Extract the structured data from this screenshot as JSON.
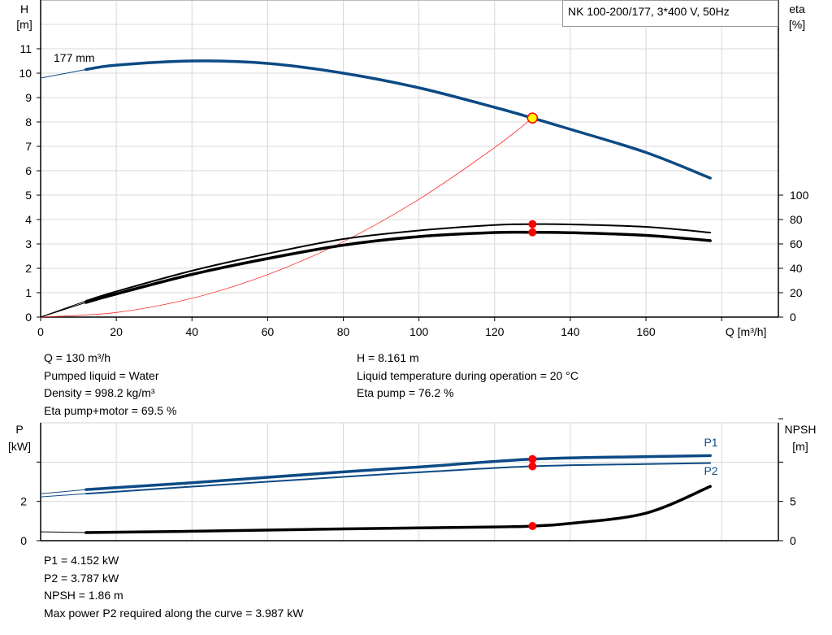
{
  "chart_data": [
    {
      "type": "line",
      "title": "NK 100-200/177, 3*400 V, 50Hz",
      "xlabel": "Q [m³/h]",
      "ylabel": "H\n[m]",
      "ylabel_lines": [
        "H",
        "[m]"
      ],
      "y2label_lines": [
        "eta",
        "[%]"
      ],
      "xlim": [
        0,
        195
      ],
      "ylim": [
        0,
        13
      ],
      "y2lim": [
        0,
        100
      ],
      "grid": true,
      "x_ticks": [
        "0",
        "20",
        "40",
        "60",
        "80",
        "100",
        "120",
        "140",
        "160"
      ],
      "y_ticks": [
        "0",
        "1",
        "2",
        "3",
        "4",
        "5",
        "6",
        "7",
        "8",
        "9",
        "10",
        "11"
      ],
      "y2_ticks": [
        "0",
        "20",
        "40",
        "60",
        "80",
        "100"
      ],
      "curve_label": "177 mm",
      "colors": {
        "head": "#0d4a85",
        "eta": "#000000",
        "system": "#ff3030",
        "duty_point": "#ff0000",
        "duty_fill": "#ffff00",
        "grid": "#d8d8d8"
      },
      "series": [
        {
          "name": "177 mm",
          "axis": "H",
          "x": [
            0,
            12,
            20,
            40,
            60,
            80,
            100,
            120,
            130,
            140,
            160,
            177
          ],
          "y": [
            9.8,
            10.15,
            10.33,
            10.5,
            10.4,
            10.0,
            9.4,
            8.6,
            8.161,
            7.7,
            6.75,
            5.7
          ]
        },
        {
          "axis": "eta",
          "x": [
            0,
            12,
            20,
            40,
            60,
            80,
            100,
            120,
            130,
            140,
            160,
            177
          ],
          "y": [
            0,
            13.3,
            21,
            38,
            52,
            64,
            71,
            75.5,
            76.2,
            76,
            74,
            69.3
          ]
        },
        {
          "axis": "eta",
          "x": [
            0,
            12,
            20,
            40,
            60,
            80,
            100,
            120,
            130,
            140,
            160,
            177
          ],
          "y": [
            0,
            12,
            19,
            35,
            48,
            59,
            66,
            69.3,
            69.5,
            69.2,
            67,
            62.7
          ]
        },
        {
          "axis": "H",
          "x": [
            0,
            20,
            40,
            60,
            80,
            100,
            120,
            130
          ],
          "y": [
            0,
            0.19,
            0.77,
            1.74,
            3.09,
            4.83,
            6.95,
            8.161
          ]
        }
      ],
      "duty_point": {
        "Q": 130,
        "H": 8.161,
        "eta_pump": 76.2,
        "eta_pump_motor": 69.5
      }
    },
    {
      "type": "line",
      "xlim": [
        0,
        195
      ],
      "ylabel_lines": [
        "P",
        "[kW]"
      ],
      "y2label_lines": [
        "NPSH",
        "[m]"
      ],
      "ylim": [
        0,
        6
      ],
      "y2lim": [
        0,
        15
      ],
      "grid": true,
      "y_ticks": [
        "0",
        "2"
      ],
      "y2_ticks": [
        "0",
        "5"
      ],
      "colors": {
        "power": "#0d4a85",
        "npsh": "#000000",
        "duty_point": "#ff0000"
      },
      "series": [
        {
          "name": "P1",
          "axis": "P",
          "x": [
            0,
            12,
            40,
            80,
            100,
            130,
            160,
            177
          ],
          "y": [
            2.39,
            2.6,
            2.95,
            3.5,
            3.75,
            4.152,
            4.28,
            4.33
          ]
        },
        {
          "name": "P2",
          "axis": "P",
          "x": [
            0,
            12,
            40,
            80,
            100,
            130,
            160,
            177
          ],
          "y": [
            2.23,
            2.39,
            2.75,
            3.25,
            3.48,
            3.787,
            3.9,
            3.95
          ]
        },
        {
          "axis": "NPSH",
          "x": [
            0,
            12,
            40,
            80,
            120,
            130,
            140,
            160,
            177
          ],
          "y": [
            1.13,
            1.03,
            1.2,
            1.5,
            1.75,
            1.86,
            2.2,
            3.5,
            6.9
          ]
        }
      ],
      "duty_point": {
        "Q": 130,
        "P1": 4.152,
        "P2": 3.787,
        "NPSH": 1.86
      }
    }
  ],
  "info_top_left": [
    "Q = 130 m³/h",
    "Pumped liquid = Water",
    "Density = 998.2 kg/m³",
    "Eta pump+motor = 69.5 %"
  ],
  "info_top_right": [
    "H = 8.161 m",
    "Liquid temperature during operation = 20 °C",
    "Eta pump = 76.2 %"
  ],
  "info_bottom": [
    "P1 = 4.152 kW",
    "P2 = 3.787 kW",
    "NPSH = 1.86 m",
    "Max power P2 required along the curve = 3.987 kW"
  ]
}
